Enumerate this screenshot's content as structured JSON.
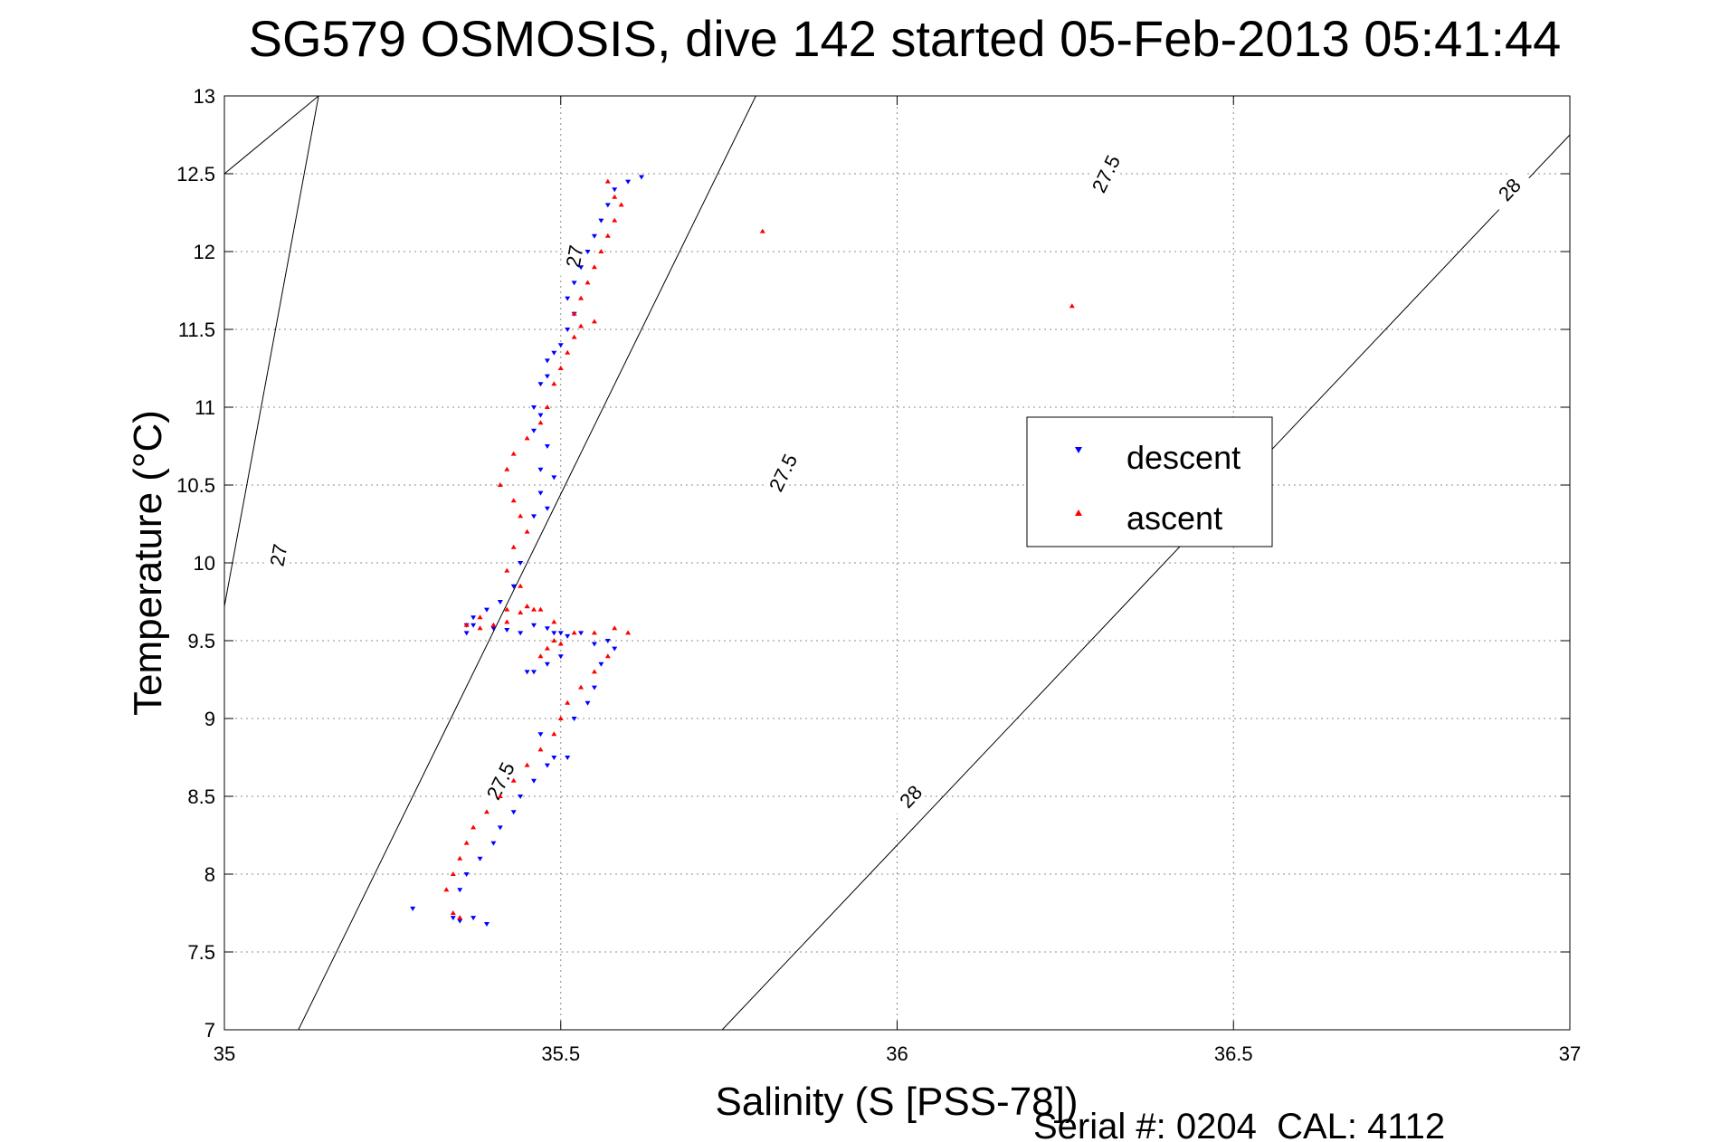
{
  "chart_data": {
    "type": "scatter",
    "title": "SG579 OSMOSIS, dive 142 started 05-Feb-2013 05:41:44",
    "xlabel": "Salinity (S [PSS-78])",
    "ylabel": "Temperature (°C)",
    "xlim": [
      35,
      37
    ],
    "ylim": [
      7,
      13
    ],
    "x_ticks": [
      "35",
      "35.5",
      "36",
      "36.5",
      "37"
    ],
    "y_ticks": [
      "7",
      "7.5",
      "8",
      "8.5",
      "9",
      "9.5",
      "10",
      "10.5",
      "11",
      "11.5",
      "12",
      "12.5",
      "13"
    ],
    "grid": true,
    "legend_position": "right-middle",
    "footer_text": "Serial #: 0204  CAL: 4112",
    "contours": [
      {
        "label": "27",
        "points": [
          [
            35.0,
            9.72
          ],
          [
            35.14,
            13.0
          ]
        ],
        "label_positions": [
          [
            35.08,
            10.05
          ],
          [
            35.52,
            11.97
          ]
        ]
      },
      {
        "label": "27",
        "points": [
          [
            35.0,
            12.5
          ],
          [
            35.14,
            13.0
          ]
        ],
        "label_positions": []
      },
      {
        "label": "27.5",
        "points": [
          [
            35.11,
            7.0
          ],
          [
            35.79,
            13.0
          ]
        ],
        "label_positions": [
          [
            35.41,
            8.6
          ],
          [
            35.83,
            10.58
          ],
          [
            36.31,
            12.5
          ]
        ]
      },
      {
        "label": "28",
        "points": [
          [
            35.74,
            7.0
          ],
          [
            37.0,
            12.75
          ]
        ],
        "label_positions": [
          [
            36.02,
            8.5
          ],
          [
            36.91,
            12.4
          ]
        ]
      }
    ],
    "series": [
      {
        "name": "descent",
        "color": "#0000ff",
        "marker": "triangle-down",
        "x": [
          35.62,
          35.6,
          35.58,
          35.57,
          35.56,
          35.55,
          35.54,
          35.53,
          35.52,
          35.51,
          35.52,
          35.51,
          35.5,
          35.49,
          35.48,
          35.48,
          35.47,
          35.46,
          35.47,
          35.46,
          35.48,
          35.47,
          35.49,
          35.47,
          35.48,
          35.46,
          35.44,
          35.43,
          35.41,
          35.39,
          35.37,
          35.36,
          35.36,
          35.37,
          35.4,
          35.42,
          35.44,
          35.46,
          35.48,
          35.49,
          35.5,
          35.51,
          35.53,
          35.55,
          35.57,
          35.58,
          35.56,
          35.55,
          35.54,
          35.52,
          35.5,
          35.48,
          35.46,
          35.45,
          35.47,
          35.49,
          35.51,
          35.48,
          35.46,
          35.44,
          35.43,
          35.41,
          35.4,
          35.38,
          35.36,
          35.35,
          35.34,
          35.35,
          35.37,
          35.39,
          35.28
        ],
        "y": [
          12.48,
          12.45,
          12.4,
          12.3,
          12.2,
          12.1,
          12.0,
          11.9,
          11.8,
          11.7,
          11.6,
          11.5,
          11.4,
          11.35,
          11.3,
          11.2,
          11.15,
          11.0,
          10.95,
          10.85,
          10.75,
          10.6,
          10.55,
          10.45,
          10.35,
          10.3,
          10.0,
          9.85,
          9.75,
          9.7,
          9.65,
          9.6,
          9.55,
          9.6,
          9.58,
          9.57,
          9.55,
          9.6,
          9.58,
          9.55,
          9.55,
          9.53,
          9.55,
          9.48,
          9.5,
          9.45,
          9.35,
          9.2,
          9.1,
          9.0,
          9.4,
          9.35,
          9.3,
          9.3,
          8.9,
          8.75,
          8.75,
          8.7,
          8.6,
          8.5,
          8.4,
          8.3,
          8.2,
          8.1,
          8.0,
          7.9,
          7.72,
          7.7,
          7.72,
          7.68,
          7.78
        ]
      },
      {
        "name": "ascent",
        "color": "#ff0000",
        "marker": "triangle-up",
        "x": [
          35.57,
          35.58,
          35.59,
          35.58,
          35.57,
          35.56,
          35.55,
          35.54,
          35.53,
          35.52,
          35.53,
          35.55,
          35.52,
          35.51,
          35.5,
          35.49,
          35.48,
          35.47,
          35.45,
          35.43,
          35.42,
          35.41,
          35.43,
          35.44,
          35.45,
          35.43,
          35.42,
          35.44,
          35.45,
          35.46,
          35.44,
          35.42,
          35.4,
          35.38,
          35.36,
          35.38,
          35.42,
          35.45,
          35.47,
          35.49,
          35.5,
          35.48,
          35.47,
          35.49,
          35.52,
          35.55,
          35.58,
          35.6,
          35.57,
          35.55,
          35.53,
          35.51,
          35.5,
          35.49,
          35.47,
          35.45,
          35.43,
          35.41,
          35.39,
          35.37,
          35.36,
          35.35,
          35.34,
          35.33,
          35.34,
          35.35,
          35.8,
          36.26
        ],
        "y": [
          12.45,
          12.35,
          12.3,
          12.2,
          12.1,
          12.0,
          11.9,
          11.8,
          11.7,
          11.6,
          11.52,
          11.55,
          11.45,
          11.35,
          11.25,
          11.15,
          11.0,
          10.9,
          10.8,
          10.7,
          10.6,
          10.5,
          10.4,
          10.3,
          10.2,
          10.1,
          9.95,
          9.85,
          9.72,
          9.7,
          9.68,
          9.62,
          9.6,
          9.58,
          9.6,
          9.65,
          9.7,
          9.72,
          9.7,
          9.62,
          9.48,
          9.45,
          9.4,
          9.5,
          9.55,
          9.55,
          9.58,
          9.55,
          9.4,
          9.3,
          9.2,
          9.1,
          9.0,
          8.9,
          8.8,
          8.7,
          8.6,
          8.5,
          8.4,
          8.3,
          8.2,
          8.1,
          8.0,
          7.9,
          7.75,
          7.72,
          12.13,
          11.65
        ]
      }
    ]
  }
}
